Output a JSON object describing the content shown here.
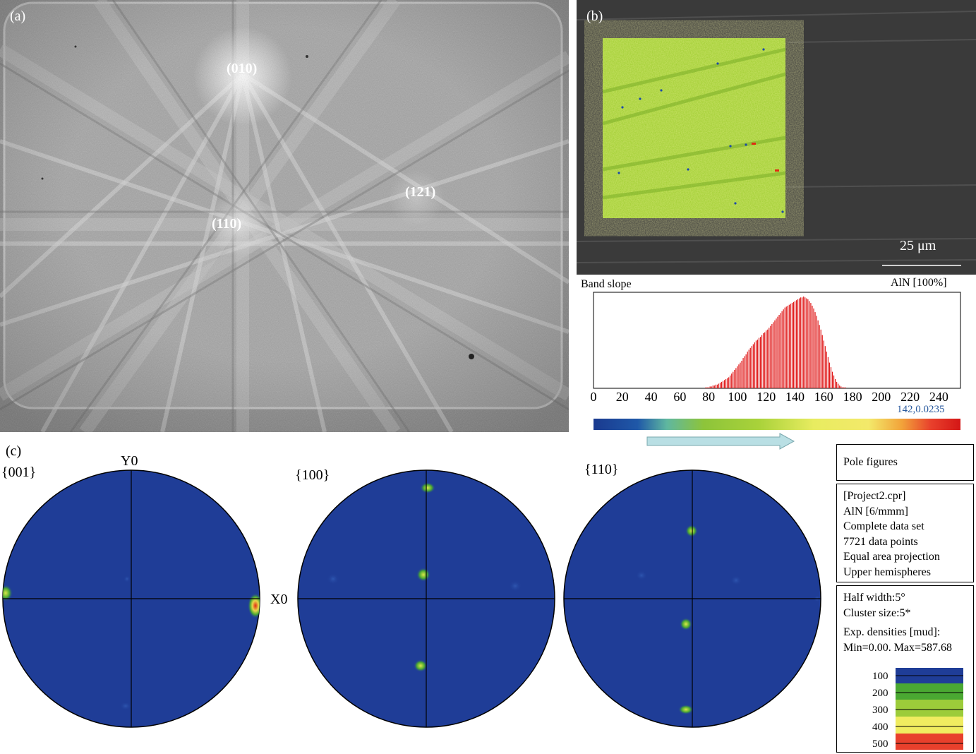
{
  "panel_a": {
    "label": "(a)",
    "zone_labels": [
      {
        "id": "010",
        "text": "(010)"
      },
      {
        "id": "110",
        "text": "(110)"
      },
      {
        "id": "121",
        "text": "(121)"
      }
    ]
  },
  "panel_b": {
    "label": "(b)",
    "scale_bar": "25 μm"
  },
  "histogram": {
    "title": "Band slope",
    "phase": "AlN [100%]",
    "x_ticks": [
      "0",
      "20",
      "40",
      "60",
      "80",
      "100",
      "120",
      "140",
      "160",
      "180",
      "200",
      "220",
      "240"
    ],
    "marker_readout": "142,0.0235",
    "colors": {
      "bars": "#e01818",
      "readout": "#2a5a9e"
    }
  },
  "chart_data": {
    "type": "bar",
    "xlabel": "",
    "ylabel": "",
    "xlim": [
      0,
      255
    ],
    "x_start": 78,
    "x_step": 1,
    "values": [
      1,
      1,
      1,
      2,
      2,
      3,
      3,
      4,
      4,
      5,
      6,
      7,
      8,
      9,
      10,
      11,
      12,
      14,
      16,
      18,
      20,
      22,
      24,
      26,
      28,
      30,
      33,
      35,
      37,
      40,
      42,
      44,
      46,
      48,
      50,
      52,
      53,
      55,
      56,
      58,
      60,
      61,
      63,
      64,
      66,
      68,
      70,
      72,
      74,
      76,
      78,
      80,
      82,
      84,
      86,
      88,
      89,
      90,
      91,
      92,
      93,
      94,
      95,
      96,
      97,
      98,
      99,
      99,
      100,
      99,
      98,
      97,
      95,
      93,
      90,
      87,
      83,
      79,
      74,
      69,
      64,
      58,
      52,
      46,
      40,
      34,
      28,
      23,
      18,
      14,
      10,
      7,
      5,
      3,
      2,
      1,
      1,
      1,
      0,
      0,
      0
    ]
  },
  "panel_c": {
    "label": "(c)",
    "axis_labels": {
      "y": "Y0",
      "x": "X0"
    },
    "pole_figures": [
      {
        "name": "{001}"
      },
      {
        "name": "{100}"
      },
      {
        "name": "{110}"
      }
    ],
    "colors": {
      "background": "#1f3d97",
      "low": "#4aa832",
      "mid": "#d9e84a",
      "high": "#e02a12"
    }
  },
  "info": {
    "title": "Pole figures",
    "details": [
      "[Project2.cpr]",
      "AlN [6/mmm]",
      "Complete data set",
      "7721 data points",
      "Equal area projection",
      "Upper hemispheres"
    ],
    "params": [
      "Half width:5°",
      "Cluster size:5*"
    ],
    "densities_title": "Exp. densities [mud]:",
    "densities_range": "Min=0.00. Max=587.68",
    "scale": [
      "100",
      "200",
      "300",
      "400",
      "500"
    ]
  }
}
